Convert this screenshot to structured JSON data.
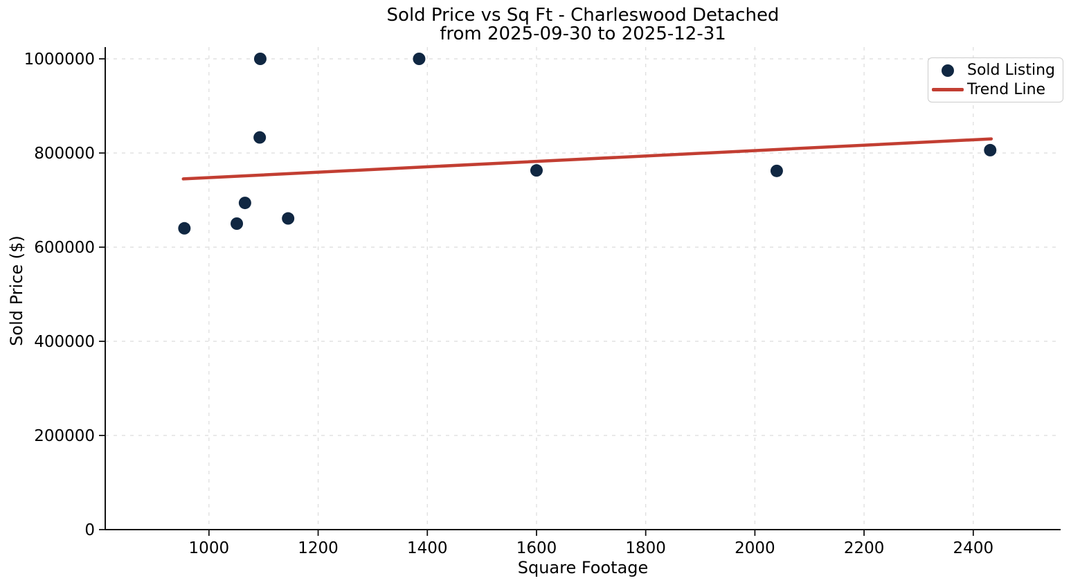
{
  "chart_data": {
    "type": "scatter",
    "title": "Sold Price vs Sq Ft - Charleswood Detached",
    "subtitle": "from 2025-09-30 to 2025-12-31",
    "xlabel": "Square Footage",
    "ylabel": "Sold Price ($)",
    "xlim": [
      810,
      2560
    ],
    "ylim": [
      0,
      1025000
    ],
    "x_ticks": [
      1000,
      1200,
      1400,
      1600,
      1800,
      2000,
      2200,
      2400
    ],
    "y_ticks": [
      0,
      200000,
      400000,
      600000,
      800000,
      1000000
    ],
    "grid": true,
    "grid_color": "#dcdcdc",
    "axis_color": "#111111",
    "legend_position": "upper right",
    "series": [
      {
        "name": "Sold Listing",
        "kind": "scatter",
        "color": "#102742",
        "marker": "circle",
        "points": [
          {
            "sqft": 955,
            "price": 640000
          },
          {
            "sqft": 1051,
            "price": 650000
          },
          {
            "sqft": 1066,
            "price": 694000
          },
          {
            "sqft": 1093,
            "price": 833000
          },
          {
            "sqft": 1094,
            "price": 1000000
          },
          {
            "sqft": 1145,
            "price": 661000
          },
          {
            "sqft": 1385,
            "price": 1000000
          },
          {
            "sqft": 1600,
            "price": 763000
          },
          {
            "sqft": 2040,
            "price": 762000
          },
          {
            "sqft": 2431,
            "price": 806000
          }
        ]
      },
      {
        "name": "Trend Line",
        "kind": "line",
        "color": "#c23e32",
        "points": [
          {
            "sqft": 953,
            "price": 745000
          },
          {
            "sqft": 2433,
            "price": 830000
          }
        ]
      }
    ]
  }
}
